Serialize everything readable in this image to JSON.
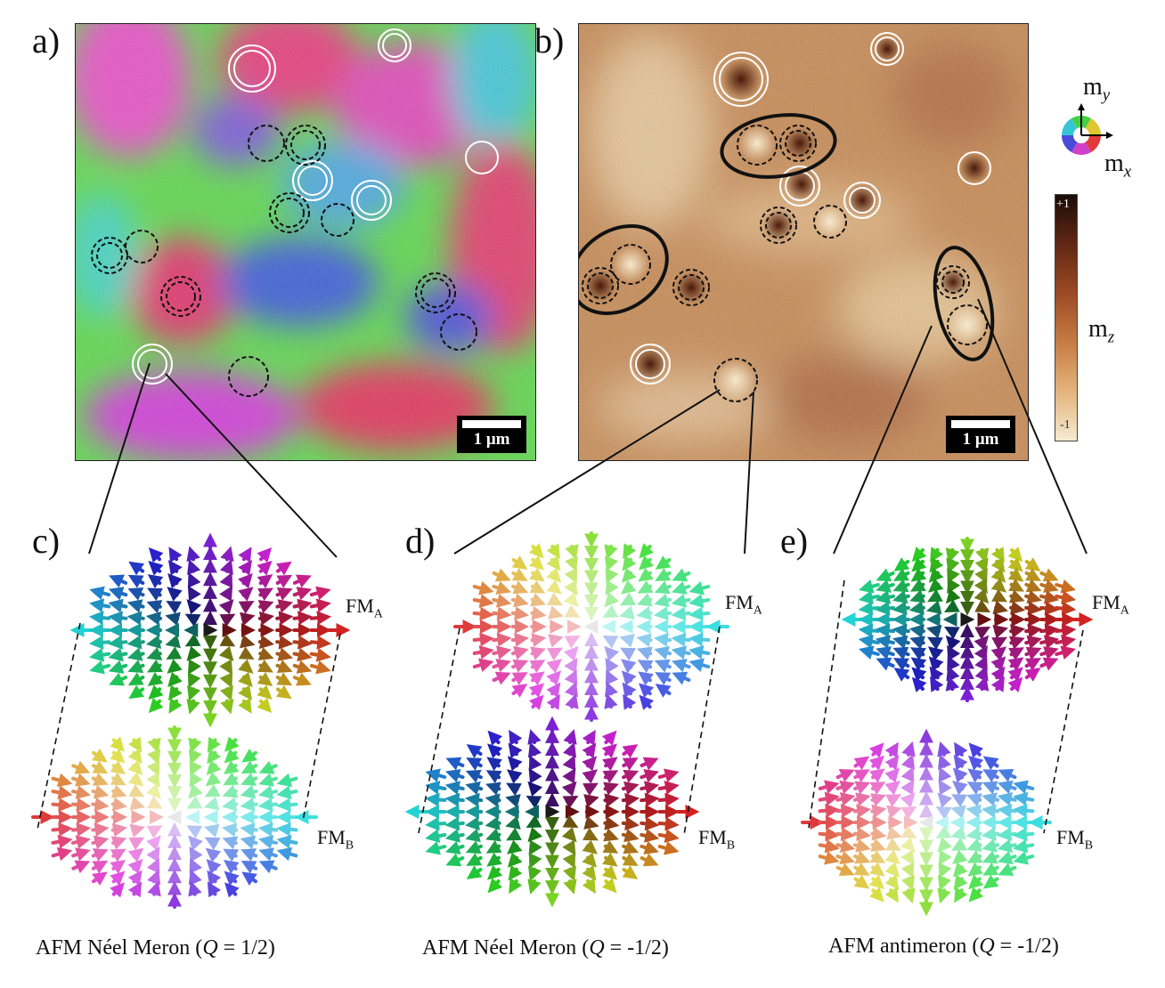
{
  "panels": {
    "a": {
      "label": "a)",
      "scalebar": "1 μm"
    },
    "b": {
      "label": "b)",
      "scalebar": "1 μm"
    },
    "c": {
      "label": "c)",
      "caption": "AFM Néel Meron (",
      "q_symbol": "Q",
      "q_value": " = 1/2)",
      "top_layer": "FM",
      "top_sub": "A",
      "bottom_layer": "FM",
      "bottom_sub": "B"
    },
    "d": {
      "label": "d)",
      "caption": "AFM Néel Meron (",
      "q_symbol": "Q",
      "q_value": " = -1/2)",
      "top_layer": "FM",
      "top_sub": "A",
      "bottom_layer": "FM",
      "bottom_sub": "B"
    },
    "e": {
      "label": "e)",
      "caption": "AFM antimeron (",
      "q_symbol": "Q",
      "q_value": " = -1/2)",
      "top_layer": "FM",
      "top_sub": "A",
      "bottom_layer": "FM",
      "bottom_sub": "B"
    }
  },
  "legend": {
    "my_label": "m",
    "my_sub": "y",
    "mx_label": "m",
    "mx_sub": "x",
    "mz_label": "m",
    "mz_sub": "z",
    "cb_max": "+1",
    "cb_min": "-1"
  },
  "colors": {
    "white_circle": "#ffffff",
    "black_circle": "#111111",
    "mz_dark": "#3a1608",
    "mz_light": "#f3e2c2"
  }
}
